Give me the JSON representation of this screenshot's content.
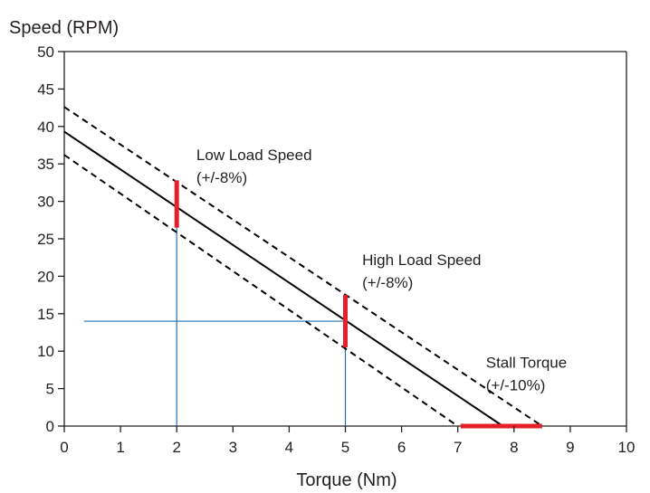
{
  "chart_data": {
    "type": "line",
    "xlabel": "Torque (Nm)",
    "ylabel": "Speed (RPM)",
    "xlim": [
      0,
      10
    ],
    "ylim": [
      0,
      50
    ],
    "x_ticks": [
      "0",
      "1",
      "2",
      "3",
      "4",
      "5",
      "6",
      "7",
      "8",
      "9",
      "10"
    ],
    "y_ticks": [
      "0",
      "5",
      "10",
      "15",
      "20",
      "25",
      "30",
      "35",
      "40",
      "45",
      "50"
    ],
    "grid": false,
    "series": [
      {
        "style": "solid",
        "color": "#000000",
        "points": [
          [
            0,
            39.3
          ],
          [
            7.8,
            0
          ]
        ]
      },
      {
        "style": "dashed",
        "color": "#000000",
        "points": [
          [
            0,
            42.6
          ],
          [
            8.5,
            0
          ]
        ]
      },
      {
        "style": "dashed",
        "color": "#000000",
        "points": [
          [
            0,
            36.2
          ],
          [
            7.0,
            0
          ]
        ]
      }
    ],
    "reference_lines": [
      {
        "color": "#1f6fb2",
        "from": [
          2,
          0
        ],
        "to": [
          2,
          29.3
        ]
      },
      {
        "color": "#1f6fb2",
        "from": [
          5,
          0
        ],
        "to": [
          5,
          14
        ]
      },
      {
        "color": "#1f6fb2",
        "from": [
          0.35,
          14
        ],
        "to": [
          5,
          14
        ]
      }
    ],
    "tolerance_bars": [
      {
        "color": "#e4202a",
        "from": [
          2,
          26.5
        ],
        "to": [
          2,
          32.8
        ]
      },
      {
        "color": "#e4202a",
        "from": [
          5,
          10.5
        ],
        "to": [
          5,
          17.5
        ]
      },
      {
        "color": "#e4202a",
        "from": [
          7.05,
          0
        ],
        "to": [
          8.5,
          0
        ]
      }
    ],
    "annotations": [
      {
        "lines": [
          "Low Load Speed",
          "(+/-8%)"
        ],
        "at": [
          2.35,
          35.5
        ]
      },
      {
        "lines": [
          "High Load Speed",
          "(+/-8%)"
        ],
        "at": [
          5.3,
          21.5
        ]
      },
      {
        "lines": [
          "Stall Torque",
          "(+/-10%)"
        ],
        "at": [
          7.5,
          7.8
        ]
      }
    ]
  }
}
